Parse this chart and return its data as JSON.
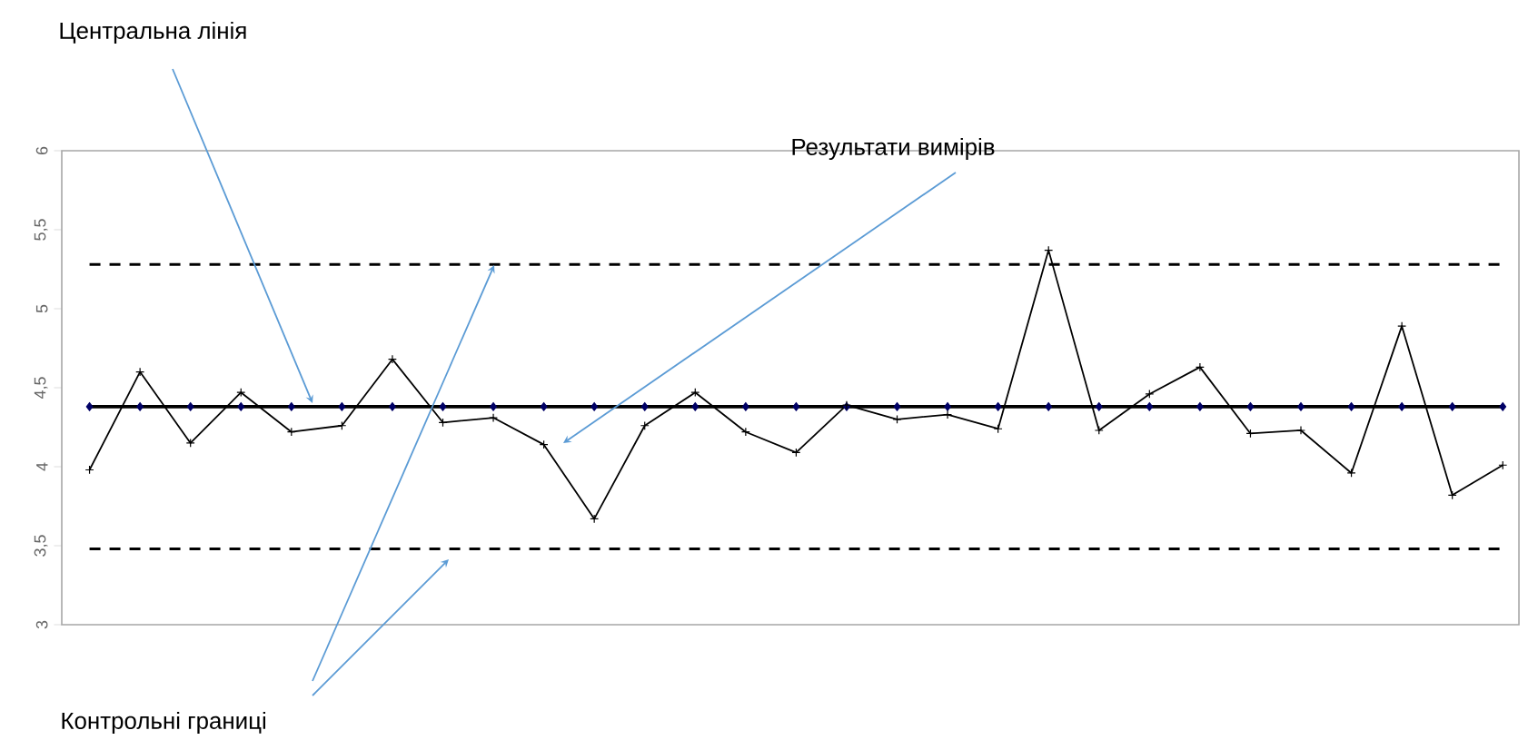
{
  "chart_data": {
    "type": "line",
    "categories": [
      null,
      null,
      null,
      null,
      null,
      null,
      null,
      null,
      null,
      null,
      null,
      null,
      null,
      null,
      null,
      null,
      null,
      null,
      null,
      null,
      null,
      null,
      null,
      null,
      null,
      null,
      null,
      null,
      null
    ],
    "series": [
      {
        "color": "#000000",
        "marker": "cross",
        "values": [
          3.98,
          4.6,
          4.15,
          4.47,
          4.22,
          4.26,
          4.68,
          4.28,
          4.31,
          4.14,
          3.67,
          4.26,
          4.47,
          4.22,
          4.09,
          4.39,
          4.3,
          4.33,
          4.24,
          5.37,
          4.23,
          4.46,
          4.63,
          4.21,
          4.23,
          3.96,
          4.89,
          3.82,
          4.01
        ]
      },
      {
        "color": "#000066",
        "marker": "diamond",
        "values": [
          4.38,
          4.38,
          4.38,
          4.38,
          4.38,
          4.38,
          4.38,
          4.38,
          4.38,
          4.38,
          4.38,
          4.38,
          4.38,
          4.38,
          4.38,
          4.38,
          4.38,
          4.38,
          4.38,
          4.38,
          4.38,
          4.38,
          4.38,
          4.38,
          4.38,
          4.38,
          4.38,
          4.38,
          4.38
        ]
      }
    ],
    "ref_lines": [
      {
        "axis": "y",
        "value": 5.28,
        "color": "#000000",
        "line_style": "dashed"
      },
      {
        "axis": "y",
        "value": 3.48,
        "color": "#000000",
        "line_style": "dashed"
      }
    ],
    "ylim": [
      3,
      6
    ],
    "yticks": [
      3,
      {
        "value": 3.5,
        "label": "3,5"
      },
      4,
      {
        "value": 4.5,
        "label": "4,5"
      },
      5,
      {
        "value": 5.5,
        "label": "5,5"
      },
      6
    ],
    "grid": false,
    "annotations": [
      "Центральна лінія",
      "Результати вимірів",
      "Контрольні границі"
    ]
  }
}
